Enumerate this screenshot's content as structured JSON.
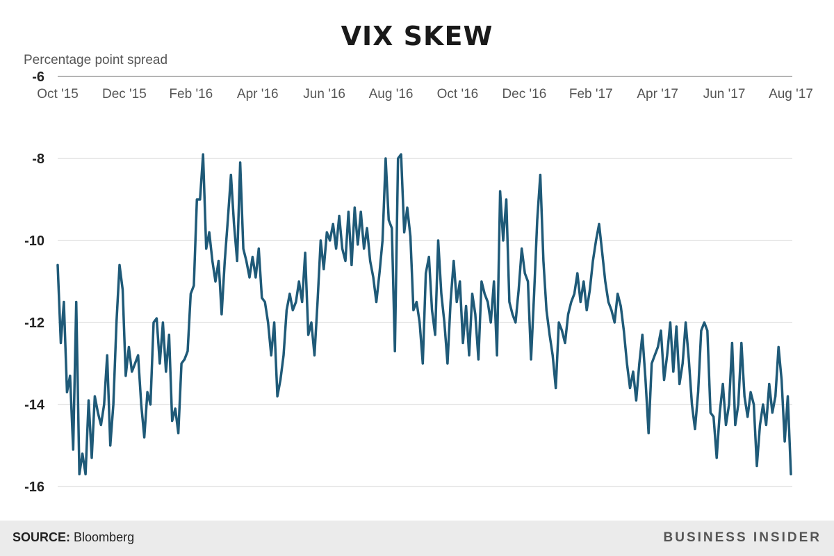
{
  "chart_data": {
    "type": "line",
    "title": "VIX SKEW",
    "ylabel": "Percentage point spread",
    "ylim": [
      -16,
      -6
    ],
    "yticks": [
      -6,
      -8,
      -10,
      -12,
      -14,
      -16
    ],
    "y_tick_labels": [
      "-6",
      "-8",
      "-10",
      "-12",
      "-14",
      "-16"
    ],
    "x_tick_labels": [
      "Oct '15",
      "Dec '15",
      "Feb '16",
      "Apr '16",
      "Jun '16",
      "Aug '16",
      "Oct '16",
      "Dec '16",
      "Feb '17",
      "Apr '17",
      "Jun '17",
      "Aug '17"
    ],
    "xlim": [
      "2015-10-01",
      "2017-08-01"
    ],
    "x_axis_position": "top",
    "grid": true,
    "line_color": "#1f5a78",
    "series": [
      {
        "values": [
          -10.6,
          -12.5,
          -11.5,
          -13.7,
          -13.3,
          -15.1,
          -11.5,
          -15.7,
          -15.2,
          -15.7,
          -13.9,
          -15.3,
          -13.8,
          -14.2,
          -14.5,
          -14.0,
          -12.8,
          -15.0,
          -14.0,
          -12.0,
          -10.6,
          -11.2,
          -13.3,
          -12.6,
          -13.2,
          -13.0,
          -12.8,
          -14.0,
          -14.8,
          -13.7,
          -14.0,
          -12.0,
          -11.9,
          -13.0,
          -12.0,
          -13.2,
          -12.3,
          -14.4,
          -14.1,
          -14.7,
          -13.0,
          -12.9,
          -12.7,
          -11.3,
          -11.1,
          -9.0,
          -9.0,
          -7.9,
          -10.2,
          -9.8,
          -10.5,
          -11.0,
          -10.5,
          -11.8,
          -10.5,
          -9.5,
          -8.4,
          -9.6,
          -10.5,
          -8.1,
          -10.2,
          -10.5,
          -10.9,
          -10.4,
          -10.9,
          -10.2,
          -11.4,
          -11.5,
          -12.0,
          -12.8,
          -12.0,
          -13.8,
          -13.4,
          -12.8,
          -11.7,
          -11.3,
          -11.7,
          -11.5,
          -11.0,
          -11.5,
          -10.3,
          -12.3,
          -12.0,
          -12.8,
          -11.5,
          -10.0,
          -10.7,
          -9.8,
          -10.0,
          -9.6,
          -10.2,
          -9.4,
          -10.2,
          -10.5,
          -9.3,
          -10.6,
          -9.2,
          -10.1,
          -9.3,
          -10.2,
          -9.7,
          -10.5,
          -10.9,
          -11.5,
          -10.8,
          -10.0,
          -8.0,
          -9.5,
          -9.7,
          -12.7,
          -8.0,
          -7.9,
          -9.8,
          -9.2,
          -9.9,
          -11.7,
          -11.5,
          -12.0,
          -13.0,
          -10.8,
          -10.4,
          -11.7,
          -12.3,
          -10.0,
          -11.3,
          -12.0,
          -13.0,
          -11.5,
          -10.5,
          -11.5,
          -11.0,
          -12.5,
          -11.6,
          -12.8,
          -11.3,
          -11.8,
          -12.9,
          -11.0,
          -11.3,
          -11.5,
          -12.0,
          -11.0,
          -12.8,
          -8.8,
          -10.0,
          -9.0,
          -11.5,
          -11.8,
          -12.0,
          -11.2,
          -10.2,
          -10.8,
          -11.0,
          -12.9,
          -11.3,
          -9.5,
          -8.4,
          -10.5,
          -11.7,
          -12.3,
          -12.8,
          -13.6,
          -12.0,
          -12.2,
          -12.5,
          -11.8,
          -11.5,
          -11.3,
          -10.8,
          -11.5,
          -11.0,
          -11.7,
          -11.2,
          -10.5,
          -10.0,
          -9.6,
          -10.3,
          -11.0,
          -11.5,
          -11.7,
          -12.0,
          -11.3,
          -11.6,
          -12.2,
          -13.0,
          -13.6,
          -13.2,
          -13.9,
          -13.0,
          -12.3,
          -13.4,
          -14.7,
          -13.0,
          -12.8,
          -12.6,
          -12.2,
          -13.4,
          -12.8,
          -12.0,
          -13.2,
          -12.1,
          -13.5,
          -13.0,
          -12.0,
          -12.9,
          -14.0,
          -14.6,
          -13.7,
          -12.2,
          -12.0,
          -12.2,
          -14.2,
          -14.3,
          -15.3,
          -14.2,
          -13.5,
          -14.5,
          -14.0,
          -12.5,
          -14.5,
          -14.0,
          -12.5,
          -13.8,
          -14.3,
          -13.7,
          -14.0,
          -15.5,
          -14.5,
          -14.0,
          -14.5,
          -13.5,
          -14.2,
          -13.8,
          -12.6,
          -13.4,
          -14.9,
          -13.8,
          -15.7
        ]
      }
    ]
  },
  "footer": {
    "source_label": "SOURCE:",
    "source_value": "Bloomberg",
    "brand": "BUSINESS INSIDER"
  }
}
